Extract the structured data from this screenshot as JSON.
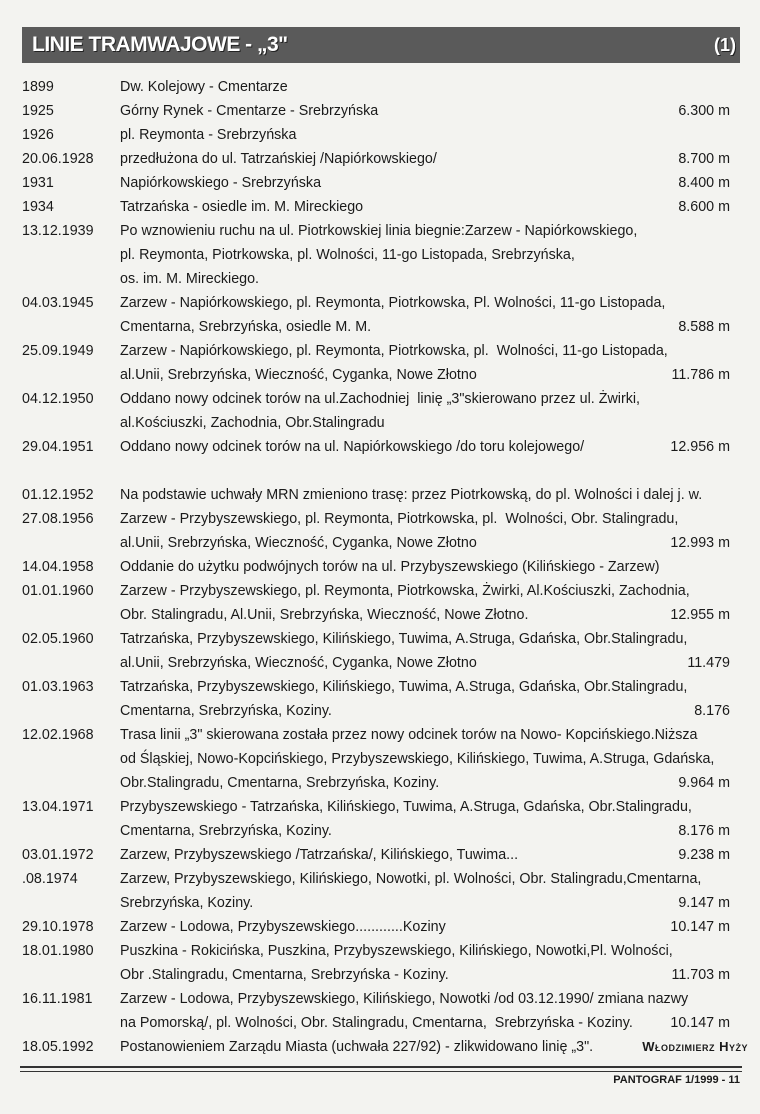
{
  "header": {
    "title": "LINIE TRAMWAJOWE - „3\"",
    "number": "(1)"
  },
  "rows": [
    {
      "date": "1899",
      "lines": [
        "Dw. Kolejowy - Cmentarze"
      ]
    },
    {
      "date": "1925",
      "lines": [
        "Górny Rynek - Cmentarze - Srebrzyńska"
      ],
      "length": "6.300 m"
    },
    {
      "date": "1926",
      "lines": [
        "pl. Reymonta - Srebrzyńska"
      ]
    },
    {
      "date": "20.06.1928",
      "lines": [
        "przedłużona do ul. Tatrzańskiej /Napiórkowskiego/"
      ],
      "length": "8.700 m"
    },
    {
      "date": "1931",
      "lines": [
        "Napiórkowskiego - Srebrzyńska"
      ],
      "length": "8.400 m"
    },
    {
      "date": "1934",
      "lines": [
        "Tatrzańska - osiedle im. M. Mireckiego"
      ],
      "length": "8.600 m"
    },
    {
      "date": "13.12.1939",
      "lines": [
        "Po wznowieniu ruchu na ul. Piotrkowskiej linia biegnie:Zarzew - Napiórkowskiego,",
        "pl. Reymonta, Piotrkowska, pl. Wolności, 11-go Listopada, Srebrzyńska,",
        "os. im. M. Mireckiego."
      ]
    },
    {
      "date": "04.03.1945",
      "lines": [
        "Zarzew - Napiórkowskiego, pl. Reymonta, Piotrkowska, Pl. Wolności, 11-go Listopada,",
        "Cmentarna, Srebrzyńska, osiedle M. M."
      ],
      "length": "8.588 m"
    },
    {
      "date": "25.09.1949",
      "lines": [
        "Zarzew - Napiórkowskiego, pl. Reymonta, Piotrkowska, pl.  Wolności, 11-go Listopada,",
        "al.Unii, Srebrzyńska, Wieczność, Cyganka, Nowe Złotno"
      ],
      "length": "11.786 m"
    },
    {
      "date": "04.12.1950",
      "lines": [
        "Oddano nowy odcinek torów na ul.Zachodniej  linię „3\"skierowano przez ul. Żwirki,",
        "al.Kościuszki, Zachodnia, Obr.Stalingradu"
      ]
    },
    {
      "date": "29.04.1951",
      "lines": [
        "Oddano nowy odcinek torów na ul. Napiórkowskiego /do toru kolejowego/"
      ],
      "length": "12.956 m"
    },
    {
      "date": "01.12.1952",
      "lines": [
        "Na podstawie uchwały MRN zmieniono trasę: przez Piotrkowską, do pl. Wolności i dalej j. w."
      ]
    },
    {
      "date": "27.08.1956",
      "lines": [
        "Zarzew - Przybyszewskiego, pl. Reymonta, Piotrkowska, pl.  Wolności, Obr. Stalingradu,",
        "al.Unii, Srebrzyńska, Wieczność, Cyganka, Nowe Złotno"
      ],
      "length": "12.993 m"
    },
    {
      "date": "14.04.1958",
      "lines": [
        "Oddanie do użytku podwójnych torów na ul. Przybyszewskiego (Kilińskiego - Zarzew)"
      ]
    },
    {
      "date": "01.01.1960",
      "lines": [
        "Zarzew - Przybyszewskiego, pl. Reymonta, Piotrkowska, Żwirki, Al.Kościuszki, Zachodnia,",
        "Obr. Stalingradu, Al.Unii, Srebrzyńska, Wieczność, Nowe Złotno."
      ],
      "length": "12.955 m"
    },
    {
      "date": "02.05.1960",
      "lines": [
        "Tatrzańska, Przybyszewskiego, Kilińskiego, Tuwima, A.Struga, Gdańska, Obr.Stalingradu,",
        "al.Unii, Srebrzyńska, Wieczność, Cyganka, Nowe Złotno"
      ],
      "length": "11.479"
    },
    {
      "date": "01.03.1963",
      "lines": [
        "Tatrzańska, Przybyszewskiego, Kilińskiego, Tuwima, A.Struga, Gdańska, Obr.Stalingradu,",
        "Cmentarna, Srebrzyńska, Koziny."
      ],
      "length": "8.176"
    },
    {
      "date": "12.02.1968",
      "lines": [
        "Trasa linii „3\" skierowana została przez nowy odcinek torów na Nowo- Kopcińskiego.Niższa",
        "od Śląskiej, Nowo-Kopcińskiego, Przybyszewskiego, Kilińskiego, Tuwima, A.Struga, Gdańska,",
        "Obr.Stalingradu, Cmentarna, Srebrzyńska, Koziny."
      ],
      "length": "9.964 m"
    },
    {
      "date": "13.04.1971",
      "lines": [
        "Przybyszewskiego - Tatrzańska, Kilińskiego, Tuwima, A.Struga, Gdańska, Obr.Stalingradu,",
        "Cmentarna, Srebrzyńska, Koziny."
      ],
      "length": "8.176 m"
    },
    {
      "date": "03.01.1972",
      "lines": [
        "Zarzew, Przybyszewskiego /Tatrzańska/, Kilińskiego, Tuwima..."
      ],
      "length": "9.238 m"
    },
    {
      "date": ".08.1974",
      "lines": [
        "Zarzew, Przybyszewskiego, Kilińskiego, Nowotki, pl. Wolności, Obr. Stalingradu,Cmentarna,",
        "Srebrzyńska, Koziny."
      ],
      "length": "9.147 m"
    },
    {
      "date": "29.10.1978",
      "lines": [
        "Zarzew - Lodowa, Przybyszewskiego............Koziny"
      ],
      "length": "10.147 m"
    },
    {
      "date": "18.01.1980",
      "lines": [
        "Puszkina - Rokicińska, Puszkina, Przybyszewskiego, Kilińskiego, Nowotki,Pl. Wolności,",
        "Obr .Stalingradu, Cmentarna, Srebrzyńska - Koziny."
      ],
      "length": "11.703 m"
    },
    {
      "date": "16.11.1981",
      "lines": [
        "Zarzew - Lodowa, Przybyszewskiego, Kilińskiego, Nowotki /od 03.12.1990/ zmiana nazwy",
        "na Pomorską/, pl. Wolności, Obr. Stalingradu, Cmentarna,  Srebrzyńska - Koziny."
      ],
      "length": "10.147 m"
    },
    {
      "date": "18.05.1992",
      "lines": [
        "Postanowieniem Zarządu Miasta (uchwała 227/92) - zlikwidowano linię „3\"."
      ]
    }
  ],
  "author": "Włodzimierz Hyży",
  "footer": "PANTOGRAF 1/1999 - 11"
}
